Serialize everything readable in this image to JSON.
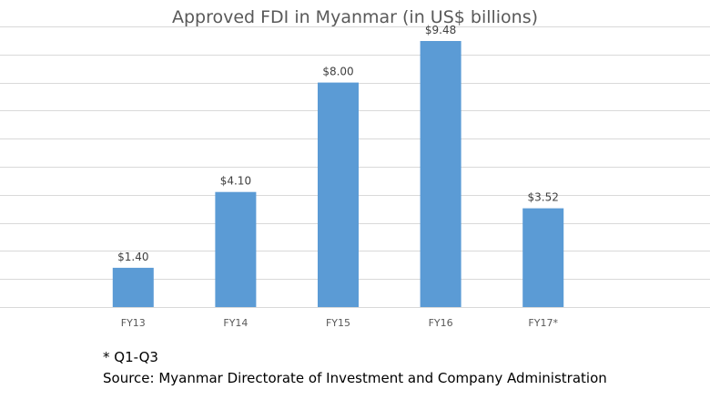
{
  "chart_data": {
    "type": "bar",
    "title": "Approved FDI in Myanmar (in US$ billions)",
    "categories": [
      "FY13",
      "FY14",
      "FY15",
      "FY16",
      "FY17*"
    ],
    "values": [
      1.4,
      4.1,
      8.0,
      9.48,
      3.52
    ],
    "data_labels": [
      "$1.40",
      "$4.10",
      "$8.00",
      "$9.48",
      "$3.52"
    ],
    "xlabel": "",
    "ylabel": "",
    "ylim": [
      0,
      10
    ],
    "grid": true,
    "legend": "none",
    "bar_color": "#5B9BD5",
    "grid_color": "#D9D9D9"
  },
  "notes": {
    "footnote": "* Q1-Q3",
    "source": "Source: Myanmar Directorate of Investment and Company Administration"
  }
}
